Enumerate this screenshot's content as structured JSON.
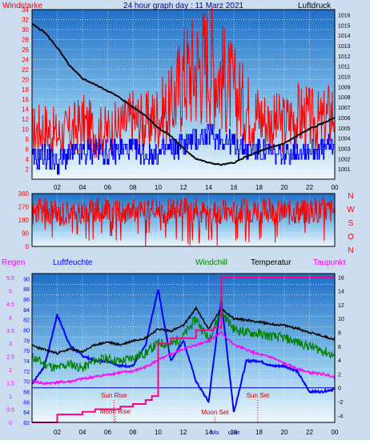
{
  "title": "24 hour graph day : 11 Marz 2021",
  "colors": {
    "frame": "#ccddf0",
    "plot_top": "#1f6fc8",
    "plot_bottom": "#eef7fd",
    "grid": "#ffffff",
    "wind": "#ff0000",
    "gust": "#0000ff",
    "pressure": "#000000",
    "direction": "#ff0000",
    "humidity": "#0000ff",
    "windchill": "#008000",
    "temperature": "#000000",
    "dewpoint": "#ff00ff",
    "rain": "#ff0080",
    "label_red": "#ff0000",
    "label_blue": "#0000ff",
    "label_green": "#008000",
    "label_magenta": "#ff00ff",
    "label_darkred": "#cc0000"
  },
  "x_ticks": [
    "02",
    "04",
    "06",
    "08",
    "10",
    "12",
    "14",
    "16",
    "18",
    "20",
    "22",
    "00"
  ],
  "chart_data": [
    {
      "type": "line",
      "name": "wind-pressure",
      "title": "24 hour graph day : 11 Marz 2021",
      "ylabel_left": "Windstarke",
      "ylabel_right": "Luftdruck",
      "xlim": [
        0,
        24
      ],
      "ylim_left": [
        0,
        34
      ],
      "ylim_right": [
        1000,
        1016.5
      ],
      "left_ticks": [
        "34",
        "32",
        "30",
        "28",
        "26",
        "24",
        "22",
        "20",
        "18",
        "16",
        "14",
        "12",
        "10",
        "8",
        "6",
        "4",
        "2"
      ],
      "right_ticks": [
        "1016",
        "1015",
        "1014",
        "1013",
        "1012",
        "1011",
        "1010",
        "1009",
        "1008",
        "1007",
        "1006",
        "1005",
        "1004",
        "1003",
        "1002",
        "1001"
      ],
      "series": [
        {
          "key": "pressure",
          "axis": "right",
          "x": [
            0,
            1,
            2,
            3,
            4,
            5,
            6,
            7,
            8,
            9,
            10,
            11,
            12,
            13,
            14,
            15,
            16,
            17,
            18,
            19,
            20,
            21,
            22,
            23,
            24
          ],
          "values": [
            1015.1,
            1014.3,
            1012.8,
            1011.0,
            1009.8,
            1009.2,
            1008.6,
            1007.9,
            1007.0,
            1006.2,
            1005.0,
            1004.2,
            1003.0,
            1002.0,
            1001.6,
            1001.4,
            1001.6,
            1002.2,
            1002.7,
            1003.1,
            1003.5,
            1004.2,
            1004.9,
            1005.4,
            1006.0
          ]
        },
        {
          "key": "wind",
          "axis": "left",
          "x": [
            0,
            1,
            2,
            3,
            4,
            5,
            6,
            7,
            8,
            9,
            10,
            11,
            12,
            13,
            14,
            15,
            16,
            17,
            18,
            19,
            20,
            21,
            22,
            23,
            24
          ],
          "values": [
            12,
            13,
            11,
            12,
            14,
            12,
            12,
            13,
            15,
            14,
            16,
            18,
            26,
            28,
            30,
            26,
            22,
            18,
            16,
            14,
            14,
            16,
            15,
            14,
            18
          ]
        },
        {
          "key": "gust",
          "axis": "left",
          "x": [
            0,
            1,
            2,
            3,
            4,
            5,
            6,
            7,
            8,
            9,
            10,
            11,
            12,
            13,
            14,
            15,
            16,
            17,
            18,
            19,
            20,
            21,
            22,
            23,
            24
          ],
          "values": [
            4,
            5,
            3,
            5,
            5,
            6,
            5,
            6,
            6,
            5,
            5,
            6,
            7,
            8,
            9,
            8,
            7,
            6,
            6,
            5,
            5,
            6,
            6,
            6,
            7
          ]
        }
      ]
    },
    {
      "type": "line",
      "name": "wind-direction",
      "xlim": [
        0,
        24
      ],
      "ylim": [
        0,
        360
      ],
      "left_ticks": [
        "360",
        "270",
        "180",
        "90",
        "0"
      ],
      "compass": [
        "N",
        "W",
        "S",
        "O",
        "N"
      ],
      "series": [
        {
          "key": "direction",
          "x": [
            0,
            1,
            2,
            3,
            4,
            5,
            6,
            7,
            8,
            9,
            10,
            11,
            12,
            13,
            14,
            15,
            16,
            17,
            18,
            19,
            20,
            21,
            22,
            23,
            24
          ],
          "values": [
            230,
            250,
            220,
            240,
            230,
            250,
            240,
            230,
            250,
            240,
            230,
            240,
            250,
            240,
            230,
            240,
            230,
            240,
            250,
            240,
            230,
            240,
            230,
            250,
            240
          ]
        }
      ]
    },
    {
      "type": "line",
      "name": "temp-humidity-rain",
      "xlim": [
        0,
        24
      ],
      "ylim_left": [
        62,
        91
      ],
      "ylim_right": [
        -5,
        16.5
      ],
      "legend": [
        "Regen",
        "Luftfeuchte",
        "Windchill",
        "Temperatur",
        "Taupunkt"
      ],
      "rain_ticks": [
        "5.5",
        "5",
        "4.5",
        "4",
        "3.5",
        "3",
        "2.5",
        "2",
        "1.5",
        "1",
        "0.5",
        "0"
      ],
      "humidity_ticks": [
        "90",
        "88",
        "86",
        "84",
        "82",
        "80",
        "78",
        "76",
        "74",
        "72",
        "70",
        "68",
        "66",
        "64",
        "62"
      ],
      "right_ticks": [
        "16",
        "14",
        "12",
        "10",
        "8",
        "6",
        "4",
        "2",
        "0",
        "-2",
        "-4"
      ],
      "annotations": [
        {
          "label": "Sun Rise",
          "x": 6.5
        },
        {
          "label": "Moon Rise",
          "x": 6.6
        },
        {
          "label": "Moon Set",
          "x": 14.5
        },
        {
          "label": "Sun Set",
          "x": 17.9
        },
        {
          "label": "Mo",
          "x": 14.5
        },
        {
          "label": "oSet",
          "x": 16.0
        }
      ],
      "series": [
        {
          "key": "temperature",
          "axis": "right",
          "x": [
            0,
            1,
            2,
            3,
            4,
            5,
            6,
            7,
            8,
            9,
            10,
            11,
            12,
            13,
            14,
            15,
            16,
            17,
            18,
            19,
            20,
            21,
            22,
            23,
            24
          ],
          "values": [
            6.1,
            5.5,
            5.0,
            5.6,
            5.2,
            6.2,
            6.6,
            6.2,
            6.8,
            7.2,
            8.5,
            8.2,
            9.0,
            11.5,
            8.5,
            11.5,
            10.0,
            9.8,
            9.5,
            9.2,
            9.0,
            8.6,
            8.0,
            7.5,
            7.0
          ]
        },
        {
          "key": "windchill",
          "axis": "right",
          "x": [
            0,
            1,
            2,
            3,
            4,
            5,
            6,
            7,
            8,
            9,
            10,
            11,
            12,
            13,
            14,
            15,
            16,
            17,
            18,
            19,
            20,
            21,
            22,
            23,
            24
          ],
          "values": [
            4.5,
            3.4,
            2.8,
            3.5,
            2.8,
            4.0,
            4.2,
            3.8,
            4.4,
            5.0,
            6.5,
            6.2,
            7.5,
            10.0,
            7.0,
            11.0,
            8.5,
            8.0,
            7.8,
            7.4,
            7.2,
            6.6,
            6.0,
            5.4,
            4.6
          ]
        },
        {
          "key": "dewpoint",
          "axis": "right",
          "x": [
            0,
            1,
            2,
            3,
            4,
            5,
            6,
            7,
            8,
            9,
            10,
            11,
            12,
            13,
            14,
            15,
            16,
            17,
            18,
            19,
            20,
            21,
            22,
            23,
            24
          ],
          "values": [
            1.0,
            0.6,
            0.8,
            0.9,
            1.3,
            1.6,
            1.9,
            2.2,
            2.4,
            3.0,
            4.0,
            4.8,
            5.6,
            6.2,
            6.8,
            8.0,
            6.2,
            5.5,
            4.8,
            4.4,
            3.5,
            2.8,
            2.2,
            2.0,
            1.6
          ]
        },
        {
          "key": "humidity",
          "axis": "left",
          "x": [
            0,
            1,
            2,
            3,
            4,
            5,
            6,
            7,
            8,
            9,
            10,
            11,
            12,
            13,
            14,
            15,
            16,
            17,
            18,
            19,
            20,
            21,
            22,
            23,
            24
          ],
          "values": [
            69.5,
            73,
            83,
            77,
            75,
            74,
            74,
            73,
            73,
            77,
            88,
            74,
            78,
            70,
            66,
            86,
            64,
            74,
            74,
            73,
            73,
            72,
            68,
            68,
            68.5
          ]
        },
        {
          "key": "rain",
          "axis": "rain",
          "x": [
            0,
            1,
            2,
            3,
            4,
            5,
            6,
            7,
            8,
            9,
            9.5,
            10,
            11,
            12,
            13,
            14,
            14.4,
            15,
            16,
            17,
            18,
            19,
            20,
            21,
            22,
            23,
            24
          ],
          "values": [
            0,
            0,
            0.3,
            0.3,
            0.4,
            0.5,
            0.5,
            0.6,
            0.7,
            0.85,
            1.0,
            3.0,
            3.2,
            3.2,
            3.5,
            3.5,
            3.6,
            5.5,
            5.5,
            5.5,
            5.5,
            5.5,
            5.5,
            5.5,
            5.5,
            5.5,
            5.5
          ]
        }
      ]
    }
  ]
}
